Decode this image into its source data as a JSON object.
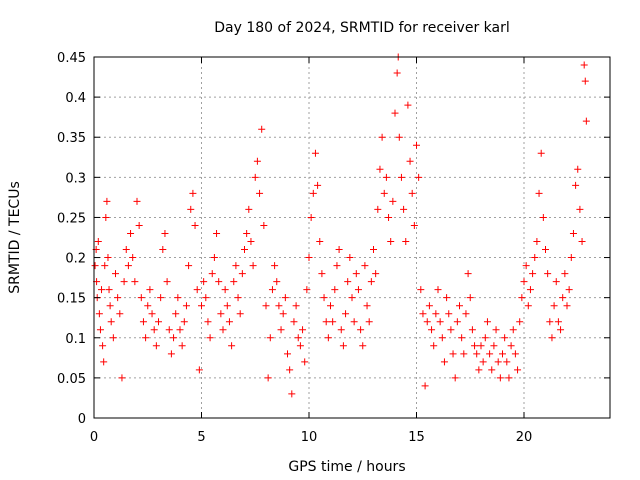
{
  "chart_data": {
    "type": "scatter",
    "title": "Day 180 of 2024, SRMTID for receiver karl",
    "xlabel": "GPS time / hours",
    "ylabel": "SRMTID / TECUs",
    "xlim": [
      0,
      24
    ],
    "ylim": [
      0,
      0.45
    ],
    "xticks": [
      0,
      5,
      10,
      15,
      20
    ],
    "yticks": [
      0,
      0.05,
      0.1,
      0.15,
      0.2,
      0.25,
      0.3,
      0.35,
      0.4,
      0.45
    ],
    "ytick_labels": [
      "0",
      "0.05",
      "0.1",
      "0.15",
      "0.2",
      "0.25",
      "0.3",
      "0.35",
      "0.4",
      "0.45"
    ],
    "grid": true,
    "marker": "plus",
    "color": "#ff0000",
    "series": [
      {
        "values_note": "dense scatter of individual satellite SRMTID samples",
        "points": [
          [
            0.05,
            0.19
          ],
          [
            0.1,
            0.21
          ],
          [
            0.12,
            0.17
          ],
          [
            0.15,
            0.15
          ],
          [
            0.2,
            0.22
          ],
          [
            0.25,
            0.13
          ],
          [
            0.3,
            0.11
          ],
          [
            0.35,
            0.16
          ],
          [
            0.4,
            0.09
          ],
          [
            0.45,
            0.07
          ],
          [
            0.5,
            0.19
          ],
          [
            0.55,
            0.25
          ],
          [
            0.6,
            0.27
          ],
          [
            0.65,
            0.2
          ],
          [
            0.7,
            0.16
          ],
          [
            0.75,
            0.14
          ],
          [
            0.8,
            0.12
          ],
          [
            0.9,
            0.1
          ],
          [
            1.0,
            0.18
          ],
          [
            1.1,
            0.15
          ],
          [
            1.2,
            0.13
          ],
          [
            1.3,
            0.05
          ],
          [
            1.4,
            0.17
          ],
          [
            1.5,
            0.21
          ],
          [
            1.6,
            0.19
          ],
          [
            1.7,
            0.23
          ],
          [
            1.8,
            0.2
          ],
          [
            1.9,
            0.17
          ],
          [
            2.0,
            0.27
          ],
          [
            2.1,
            0.24
          ],
          [
            2.2,
            0.15
          ],
          [
            2.3,
            0.12
          ],
          [
            2.4,
            0.1
          ],
          [
            2.5,
            0.14
          ],
          [
            2.6,
            0.16
          ],
          [
            2.7,
            0.13
          ],
          [
            2.8,
            0.11
          ],
          [
            2.9,
            0.09
          ],
          [
            3.0,
            0.12
          ],
          [
            3.1,
            0.15
          ],
          [
            3.2,
            0.21
          ],
          [
            3.3,
            0.23
          ],
          [
            3.4,
            0.17
          ],
          [
            3.5,
            0.11
          ],
          [
            3.6,
            0.08
          ],
          [
            3.7,
            0.1
          ],
          [
            3.8,
            0.13
          ],
          [
            3.9,
            0.15
          ],
          [
            4.0,
            0.11
          ],
          [
            4.1,
            0.09
          ],
          [
            4.2,
            0.12
          ],
          [
            4.3,
            0.14
          ],
          [
            4.4,
            0.19
          ],
          [
            4.5,
            0.26
          ],
          [
            4.6,
            0.28
          ],
          [
            4.7,
            0.24
          ],
          [
            4.8,
            0.16
          ],
          [
            4.9,
            0.06
          ],
          [
            5.0,
            0.14
          ],
          [
            5.1,
            0.17
          ],
          [
            5.2,
            0.15
          ],
          [
            5.3,
            0.12
          ],
          [
            5.4,
            0.1
          ],
          [
            5.5,
            0.18
          ],
          [
            5.6,
            0.2
          ],
          [
            5.7,
            0.23
          ],
          [
            5.8,
            0.17
          ],
          [
            5.9,
            0.13
          ],
          [
            6.0,
            0.11
          ],
          [
            6.1,
            0.16
          ],
          [
            6.2,
            0.14
          ],
          [
            6.3,
            0.12
          ],
          [
            6.4,
            0.09
          ],
          [
            6.5,
            0.17
          ],
          [
            6.6,
            0.19
          ],
          [
            6.7,
            0.15
          ],
          [
            6.8,
            0.13
          ],
          [
            6.9,
            0.18
          ],
          [
            7.0,
            0.21
          ],
          [
            7.1,
            0.23
          ],
          [
            7.2,
            0.26
          ],
          [
            7.3,
            0.22
          ],
          [
            7.4,
            0.19
          ],
          [
            7.5,
            0.3
          ],
          [
            7.6,
            0.32
          ],
          [
            7.7,
            0.28
          ],
          [
            7.8,
            0.36
          ],
          [
            7.9,
            0.24
          ],
          [
            8.0,
            0.14
          ],
          [
            8.1,
            0.05
          ],
          [
            8.2,
            0.1
          ],
          [
            8.3,
            0.16
          ],
          [
            8.4,
            0.19
          ],
          [
            8.5,
            0.17
          ],
          [
            8.6,
            0.14
          ],
          [
            8.7,
            0.11
          ],
          [
            8.8,
            0.13
          ],
          [
            8.9,
            0.15
          ],
          [
            9.0,
            0.08
          ],
          [
            9.1,
            0.06
          ],
          [
            9.2,
            0.03
          ],
          [
            9.3,
            0.12
          ],
          [
            9.4,
            0.14
          ],
          [
            9.5,
            0.1
          ],
          [
            9.6,
            0.09
          ],
          [
            9.7,
            0.11
          ],
          [
            9.8,
            0.07
          ],
          [
            9.9,
            0.16
          ],
          [
            10.0,
            0.2
          ],
          [
            10.1,
            0.25
          ],
          [
            10.2,
            0.28
          ],
          [
            10.3,
            0.33
          ],
          [
            10.4,
            0.29
          ],
          [
            10.5,
            0.22
          ],
          [
            10.6,
            0.18
          ],
          [
            10.7,
            0.15
          ],
          [
            10.8,
            0.12
          ],
          [
            10.9,
            0.1
          ],
          [
            11.0,
            0.14
          ],
          [
            11.1,
            0.12
          ],
          [
            11.2,
            0.16
          ],
          [
            11.3,
            0.19
          ],
          [
            11.4,
            0.21
          ],
          [
            11.5,
            0.11
          ],
          [
            11.6,
            0.09
          ],
          [
            11.7,
            0.13
          ],
          [
            11.8,
            0.17
          ],
          [
            11.9,
            0.2
          ],
          [
            12.0,
            0.15
          ],
          [
            12.1,
            0.12
          ],
          [
            12.2,
            0.18
          ],
          [
            12.3,
            0.16
          ],
          [
            12.4,
            0.11
          ],
          [
            12.5,
            0.09
          ],
          [
            12.6,
            0.19
          ],
          [
            12.7,
            0.14
          ],
          [
            12.8,
            0.12
          ],
          [
            12.9,
            0.17
          ],
          [
            13.0,
            0.21
          ],
          [
            13.1,
            0.18
          ],
          [
            13.2,
            0.26
          ],
          [
            13.3,
            0.31
          ],
          [
            13.4,
            0.35
          ],
          [
            13.5,
            0.28
          ],
          [
            13.6,
            0.3
          ],
          [
            13.7,
            0.25
          ],
          [
            13.8,
            0.22
          ],
          [
            13.9,
            0.27
          ],
          [
            14.0,
            0.38
          ],
          [
            14.1,
            0.43
          ],
          [
            14.15,
            0.45
          ],
          [
            14.2,
            0.35
          ],
          [
            14.3,
            0.3
          ],
          [
            14.4,
            0.26
          ],
          [
            14.5,
            0.22
          ],
          [
            14.6,
            0.39
          ],
          [
            14.7,
            0.32
          ],
          [
            14.8,
            0.28
          ],
          [
            14.9,
            0.24
          ],
          [
            15.0,
            0.34
          ],
          [
            15.1,
            0.3
          ],
          [
            15.2,
            0.16
          ],
          [
            15.3,
            0.13
          ],
          [
            15.4,
            0.04
          ],
          [
            15.5,
            0.12
          ],
          [
            15.6,
            0.14
          ],
          [
            15.7,
            0.11
          ],
          [
            15.8,
            0.09
          ],
          [
            15.9,
            0.13
          ],
          [
            16.0,
            0.16
          ],
          [
            16.1,
            0.12
          ],
          [
            16.2,
            0.1
          ],
          [
            16.3,
            0.07
          ],
          [
            16.4,
            0.15
          ],
          [
            16.5,
            0.13
          ],
          [
            16.6,
            0.11
          ],
          [
            16.7,
            0.08
          ],
          [
            16.8,
            0.05
          ],
          [
            16.9,
            0.12
          ],
          [
            17.0,
            0.14
          ],
          [
            17.1,
            0.1
          ],
          [
            17.2,
            0.08
          ],
          [
            17.3,
            0.13
          ],
          [
            17.4,
            0.18
          ],
          [
            17.5,
            0.15
          ],
          [
            17.6,
            0.11
          ],
          [
            17.7,
            0.09
          ],
          [
            17.8,
            0.08
          ],
          [
            17.9,
            0.06
          ],
          [
            18.0,
            0.09
          ],
          [
            18.1,
            0.07
          ],
          [
            18.2,
            0.1
          ],
          [
            18.3,
            0.12
          ],
          [
            18.4,
            0.08
          ],
          [
            18.5,
            0.06
          ],
          [
            18.6,
            0.09
          ],
          [
            18.7,
            0.11
          ],
          [
            18.8,
            0.07
          ],
          [
            18.9,
            0.05
          ],
          [
            19.0,
            0.08
          ],
          [
            19.1,
            0.1
          ],
          [
            19.2,
            0.07
          ],
          [
            19.3,
            0.05
          ],
          [
            19.4,
            0.09
          ],
          [
            19.5,
            0.11
          ],
          [
            19.6,
            0.08
          ],
          [
            19.7,
            0.06
          ],
          [
            19.8,
            0.12
          ],
          [
            19.9,
            0.15
          ],
          [
            20.0,
            0.17
          ],
          [
            20.1,
            0.19
          ],
          [
            20.2,
            0.14
          ],
          [
            20.3,
            0.16
          ],
          [
            20.4,
            0.18
          ],
          [
            20.5,
            0.2
          ],
          [
            20.6,
            0.22
          ],
          [
            20.7,
            0.28
          ],
          [
            20.8,
            0.33
          ],
          [
            20.9,
            0.25
          ],
          [
            21.0,
            0.21
          ],
          [
            21.1,
            0.18
          ],
          [
            21.2,
            0.12
          ],
          [
            21.3,
            0.1
          ],
          [
            21.4,
            0.14
          ],
          [
            21.5,
            0.17
          ],
          [
            21.6,
            0.12
          ],
          [
            21.7,
            0.11
          ],
          [
            21.8,
            0.15
          ],
          [
            21.9,
            0.18
          ],
          [
            22.0,
            0.14
          ],
          [
            22.1,
            0.16
          ],
          [
            22.2,
            0.2
          ],
          [
            22.3,
            0.23
          ],
          [
            22.4,
            0.29
          ],
          [
            22.5,
            0.31
          ],
          [
            22.6,
            0.26
          ],
          [
            22.7,
            0.22
          ],
          [
            22.8,
            0.44
          ],
          [
            22.85,
            0.42
          ],
          [
            22.9,
            0.37
          ]
        ]
      }
    ]
  }
}
